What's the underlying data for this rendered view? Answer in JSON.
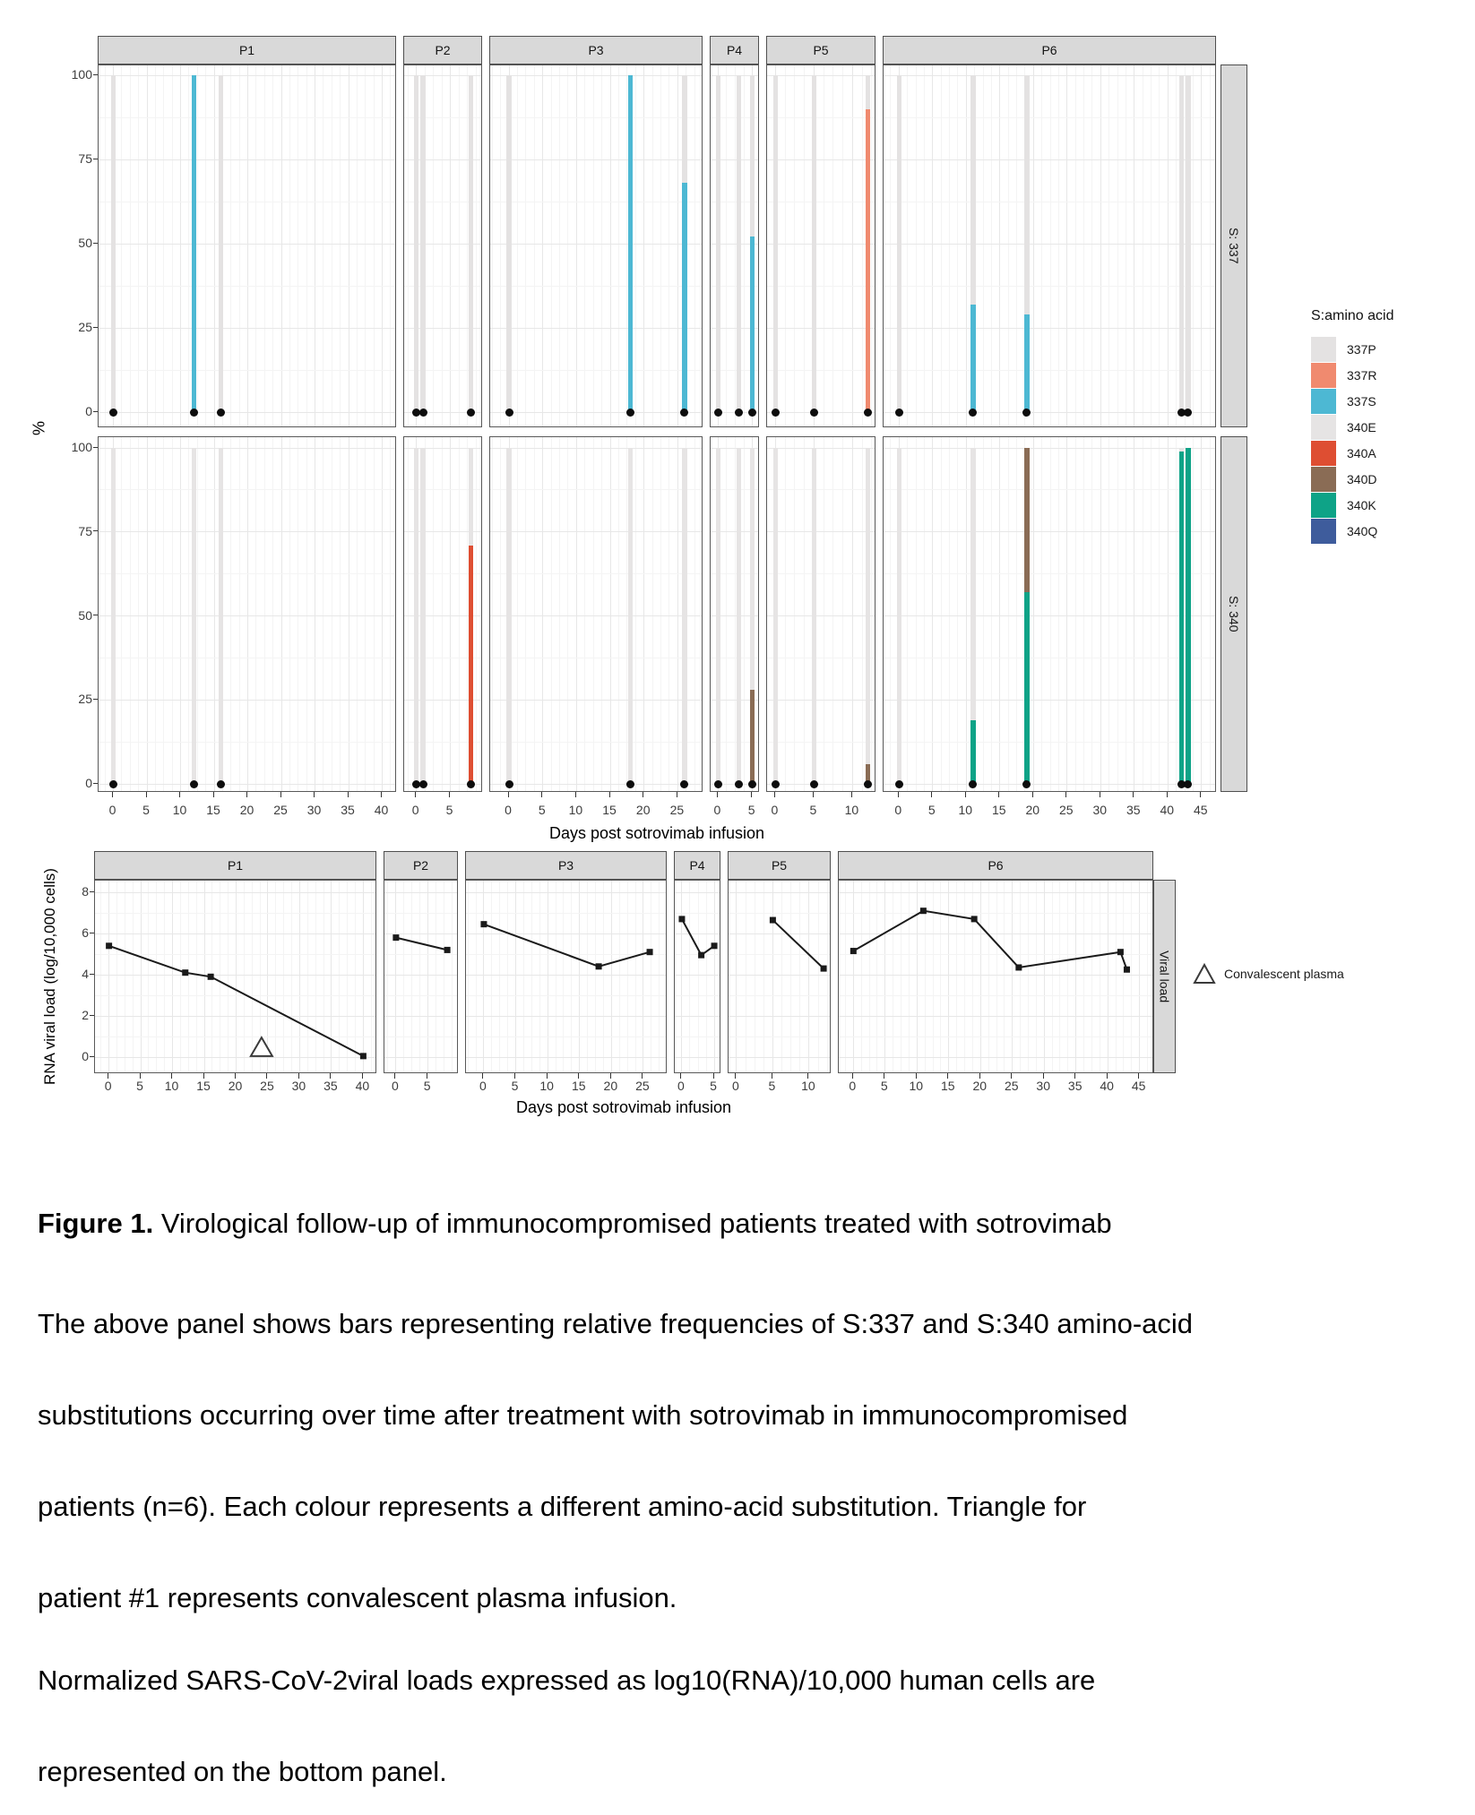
{
  "colors": {
    "337P": "#e4e2e2",
    "337R": "#f08a6f",
    "337S": "#4db8d3",
    "340E": "#e6e4e4",
    "340A": "#de4e32",
    "340D": "#8a6c55",
    "340K": "#0ea387",
    "340Q": "#3e5c9c",
    "sample_dot": "#0d0d0d",
    "viral_line": "#1a1a1a"
  },
  "axis": {
    "x_title": "Days post sotrovimab infusion",
    "pct_title": "%",
    "vl_title": "RNA viral load (log/10,000 cells)",
    "pct_ticks": [
      0,
      25,
      50,
      75,
      100
    ],
    "vl_ticks": [
      0,
      2,
      4,
      6,
      8
    ]
  },
  "legend_aa": {
    "title": "S:amino acid",
    "items": [
      {
        "label": "337P",
        "color": "#e4e2e2"
      },
      {
        "label": "337R",
        "color": "#f08a6f"
      },
      {
        "label": "337S",
        "color": "#4db8d3"
      },
      {
        "label": "340E",
        "color": "#e6e4e4"
      },
      {
        "label": "340A",
        "color": "#de4e32"
      },
      {
        "label": "340D",
        "color": "#8a6c55"
      },
      {
        "label": "340K",
        "color": "#0ea387"
      },
      {
        "label": "340Q",
        "color": "#3e5c9c"
      }
    ]
  },
  "legend_plasma": {
    "label": "Convalescent plasma"
  },
  "chart_data": [
    {
      "type": "bar",
      "stacked": true,
      "row_label": "S: 337",
      "ylabel": "%",
      "ylim": [
        0,
        100
      ],
      "yticks": [
        0,
        25,
        50,
        75,
        100
      ],
      "panels": [
        {
          "label": "P1",
          "xmax": 40,
          "xpad": 2.2,
          "xticks": [
            0,
            5,
            10,
            15,
            20,
            25,
            30,
            35,
            40
          ],
          "samples": [
            {
              "day": 0,
              "segments": [
                {
                  "aa": "337P",
                  "pct": 100
                }
              ]
            },
            {
              "day": 12,
              "segments": [
                {
                  "aa": "337S",
                  "pct": 100
                }
              ]
            },
            {
              "day": 16,
              "segments": [
                {
                  "aa": "337P",
                  "pct": 100
                }
              ]
            }
          ]
        },
        {
          "label": "P2",
          "xmax": 8,
          "xpad": 1.8,
          "xticks": [
            0,
            5
          ],
          "samples": [
            {
              "day": 0,
              "segments": [
                {
                  "aa": "337P",
                  "pct": 100
                }
              ]
            },
            {
              "day": 1,
              "segments": [
                {
                  "aa": "337P",
                  "pct": 100
                }
              ]
            },
            {
              "day": 8,
              "segments": [
                {
                  "aa": "337P",
                  "pct": 100
                }
              ]
            }
          ]
        },
        {
          "label": "P3",
          "xmax": 26,
          "xpad": 2.8,
          "xticks": [
            0,
            5,
            10,
            15,
            20,
            25
          ],
          "samples": [
            {
              "day": 0,
              "segments": [
                {
                  "aa": "337P",
                  "pct": 100
                }
              ]
            },
            {
              "day": 18,
              "segments": [
                {
                  "aa": "337S",
                  "pct": 100
                }
              ]
            },
            {
              "day": 26,
              "segments": [
                {
                  "aa": "337S",
                  "pct": 68
                },
                {
                  "aa": "337P",
                  "pct": 32
                }
              ]
            }
          ]
        },
        {
          "label": "P4",
          "xmax": 5,
          "xpad": 1.1,
          "xticks": [
            0,
            5
          ],
          "samples": [
            {
              "day": 0,
              "segments": [
                {
                  "aa": "337P",
                  "pct": 100
                }
              ]
            },
            {
              "day": 3,
              "segments": [
                {
                  "aa": "337P",
                  "pct": 100
                }
              ]
            },
            {
              "day": 5,
              "segments": [
                {
                  "aa": "337S",
                  "pct": 52
                },
                {
                  "aa": "337P",
                  "pct": 48
                }
              ]
            }
          ]
        },
        {
          "label": "P5",
          "xmax": 12,
          "xpad": 1.1,
          "xticks": [
            0,
            5,
            10
          ],
          "samples": [
            {
              "day": 0,
              "segments": [
                {
                  "aa": "337P",
                  "pct": 100
                }
              ]
            },
            {
              "day": 5,
              "segments": [
                {
                  "aa": "337P",
                  "pct": 100
                }
              ]
            },
            {
              "day": 12,
              "segments": [
                {
                  "aa": "337R",
                  "pct": 90
                },
                {
                  "aa": "337P",
                  "pct": 10
                }
              ]
            }
          ]
        },
        {
          "label": "P6",
          "xmax": 45,
          "xpad": 2.3,
          "xticks": [
            0,
            5,
            10,
            15,
            20,
            25,
            30,
            35,
            40,
            45
          ],
          "samples": [
            {
              "day": 0,
              "segments": [
                {
                  "aa": "337P",
                  "pct": 100
                }
              ]
            },
            {
              "day": 11,
              "segments": [
                {
                  "aa": "337S",
                  "pct": 32
                },
                {
                  "aa": "337P",
                  "pct": 68
                }
              ]
            },
            {
              "day": 19,
              "segments": [
                {
                  "aa": "337S",
                  "pct": 29
                },
                {
                  "aa": "337P",
                  "pct": 71
                }
              ]
            },
            {
              "day": 42,
              "segments": [
                {
                  "aa": "337P",
                  "pct": 100
                }
              ]
            },
            {
              "day": 43,
              "segments": [
                {
                  "aa": "337P",
                  "pct": 100
                }
              ]
            }
          ]
        }
      ]
    },
    {
      "type": "bar",
      "stacked": true,
      "row_label": "S: 340",
      "ylabel": "%",
      "ylim": [
        0,
        100
      ],
      "yticks": [
        0,
        25,
        50,
        75,
        100
      ],
      "panels": [
        {
          "label": "P1",
          "xmax": 40,
          "xpad": 2.2,
          "xticks": [
            0,
            5,
            10,
            15,
            20,
            25,
            30,
            35,
            40
          ],
          "samples": [
            {
              "day": 0,
              "segments": [
                {
                  "aa": "340E",
                  "pct": 100
                }
              ]
            },
            {
              "day": 12,
              "segments": [
                {
                  "aa": "340E",
                  "pct": 100
                }
              ]
            },
            {
              "day": 16,
              "segments": [
                {
                  "aa": "340E",
                  "pct": 100
                }
              ]
            }
          ]
        },
        {
          "label": "P2",
          "xmax": 8,
          "xpad": 1.8,
          "xticks": [
            0,
            5
          ],
          "samples": [
            {
              "day": 0,
              "segments": [
                {
                  "aa": "340E",
                  "pct": 100
                }
              ]
            },
            {
              "day": 1,
              "segments": [
                {
                  "aa": "340E",
                  "pct": 100
                }
              ]
            },
            {
              "day": 8,
              "segments": [
                {
                  "aa": "340A",
                  "pct": 71
                },
                {
                  "aa": "340E",
                  "pct": 29
                }
              ]
            }
          ]
        },
        {
          "label": "P3",
          "xmax": 26,
          "xpad": 2.8,
          "xticks": [
            0,
            5,
            10,
            15,
            20,
            25
          ],
          "samples": [
            {
              "day": 0,
              "segments": [
                {
                  "aa": "340E",
                  "pct": 100
                }
              ]
            },
            {
              "day": 18,
              "segments": [
                {
                  "aa": "340E",
                  "pct": 100
                }
              ]
            },
            {
              "day": 26,
              "segments": [
                {
                  "aa": "340E",
                  "pct": 100
                }
              ]
            }
          ]
        },
        {
          "label": "P4",
          "xmax": 5,
          "xpad": 1.1,
          "xticks": [
            0,
            5
          ],
          "samples": [
            {
              "day": 0,
              "segments": [
                {
                  "aa": "340E",
                  "pct": 100
                }
              ]
            },
            {
              "day": 3,
              "segments": [
                {
                  "aa": "340E",
                  "pct": 100
                }
              ]
            },
            {
              "day": 5,
              "segments": [
                {
                  "aa": "340D",
                  "pct": 28
                },
                {
                  "aa": "340E",
                  "pct": 72
                }
              ]
            }
          ]
        },
        {
          "label": "P5",
          "xmax": 12,
          "xpad": 1.1,
          "xticks": [
            0,
            5,
            10
          ],
          "samples": [
            {
              "day": 0,
              "segments": [
                {
                  "aa": "340E",
                  "pct": 100
                }
              ]
            },
            {
              "day": 5,
              "segments": [
                {
                  "aa": "340E",
                  "pct": 100
                }
              ]
            },
            {
              "day": 12,
              "segments": [
                {
                  "aa": "340D",
                  "pct": 6
                },
                {
                  "aa": "340E",
                  "pct": 94
                }
              ]
            }
          ]
        },
        {
          "label": "P6",
          "xmax": 45,
          "xpad": 2.3,
          "xticks": [
            0,
            5,
            10,
            15,
            20,
            25,
            30,
            35,
            40,
            45
          ],
          "samples": [
            {
              "day": 0,
              "segments": [
                {
                  "aa": "340E",
                  "pct": 100
                }
              ]
            },
            {
              "day": 11,
              "segments": [
                {
                  "aa": "340K",
                  "pct": 19
                },
                {
                  "aa": "340E",
                  "pct": 81
                }
              ]
            },
            {
              "day": 19,
              "segments": [
                {
                  "aa": "340K",
                  "pct": 57
                },
                {
                  "aa": "340D",
                  "pct": 43
                }
              ]
            },
            {
              "day": 42,
              "segments": [
                {
                  "aa": "340K",
                  "pct": 99
                },
                {
                  "aa": "340E",
                  "pct": 1
                }
              ]
            },
            {
              "day": 43,
              "segments": [
                {
                  "aa": "340K",
                  "pct": 100
                }
              ]
            }
          ]
        }
      ]
    },
    {
      "type": "line",
      "row_label": "Viral load",
      "ylabel": "RNA viral load (log/10,000 cells)",
      "ylim": [
        0,
        8
      ],
      "yticks": [
        0,
        2,
        4,
        6,
        8
      ],
      "panels": [
        {
          "label": "P1",
          "xmax": 40,
          "xpad": 2.2,
          "xticks": [
            0,
            5,
            10,
            15,
            20,
            25,
            30,
            35,
            40
          ],
          "points": [
            [
              0,
              5.4
            ],
            [
              12,
              4.1
            ],
            [
              16,
              3.9
            ],
            [
              40,
              0.05
            ]
          ],
          "plasma_day": 24
        },
        {
          "label": "P2",
          "xmax": 8,
          "xpad": 1.8,
          "xticks": [
            0,
            5
          ],
          "points": [
            [
              0,
              5.8
            ],
            [
              8,
              5.2
            ]
          ]
        },
        {
          "label": "P3",
          "xmax": 26,
          "xpad": 2.8,
          "xticks": [
            0,
            5,
            10,
            15,
            20,
            25
          ],
          "points": [
            [
              0,
              6.45
            ],
            [
              18,
              4.4
            ],
            [
              26,
              5.1
            ]
          ]
        },
        {
          "label": "P4",
          "xmax": 5,
          "xpad": 1.1,
          "xticks": [
            0,
            5
          ],
          "points": [
            [
              0,
              6.7
            ],
            [
              3,
              4.95
            ],
            [
              5,
              5.4
            ]
          ]
        },
        {
          "label": "P5",
          "xmax": 12,
          "xpad": 1.1,
          "xticks": [
            0,
            5,
            10
          ],
          "points": [
            [
              5,
              6.65
            ],
            [
              12,
              4.3
            ]
          ]
        },
        {
          "label": "P6",
          "xmax": 45,
          "xpad": 2.3,
          "xticks": [
            0,
            5,
            10,
            15,
            20,
            25,
            30,
            35,
            40,
            45
          ],
          "points": [
            [
              0,
              5.15
            ],
            [
              11,
              7.1
            ],
            [
              19,
              6.7
            ],
            [
              26,
              4.35
            ],
            [
              42,
              5.1
            ],
            [
              43,
              4.25
            ]
          ]
        }
      ]
    }
  ],
  "caption": {
    "title_prefix": "Figure 1.",
    "title_rest": " Virological follow-up of immunocompromised patients treated with sotrovimab",
    "lines": [
      "The above panel shows bars representing relative frequencies of S:337 and S:340 amino-acid",
      "substitutions occurring over time after treatment with sotrovimab in immunocompromised",
      "patients (n=6). Each colour represents a different amino-acid substitution. Triangle for",
      "patient #1 represents convalescent plasma infusion.",
      "Normalized SARS-CoV-2viral loads expressed as log10(RNA)/10,000 human cells are",
      "represented on the bottom panel."
    ]
  }
}
